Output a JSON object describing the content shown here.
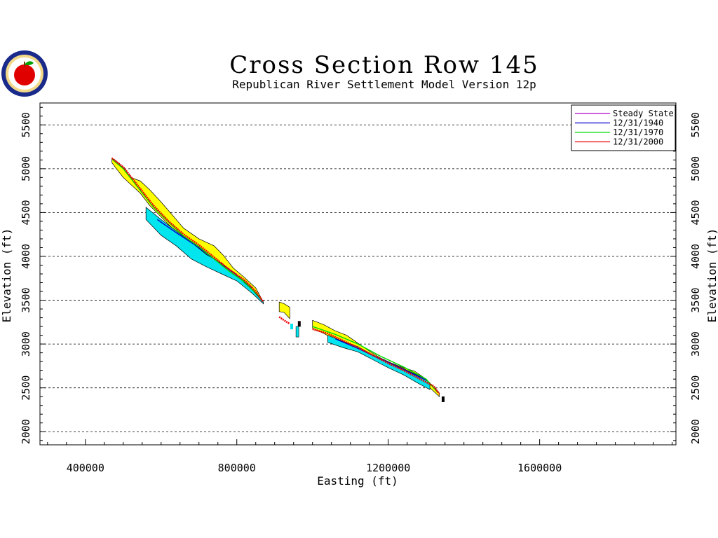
{
  "chart_data": {
    "type": "area",
    "title": "Cross Section Row 145",
    "subtitle": "Republican River Settlement Model Version 12p",
    "xlabel": "Easting (ft)",
    "ylabel": "Elevation (ft)",
    "xlim": [
      280000,
      1960000
    ],
    "ylim": [
      1850000,
      5750
    ],
    "x_ticks": [
      400000,
      800000,
      1200000,
      1600000
    ],
    "x_tick_labels": [
      "400000",
      "800000",
      "1200000",
      "1600000"
    ],
    "y_ticks": [
      2000,
      2500,
      3000,
      3500,
      4000,
      4500,
      5000,
      5500
    ],
    "y_tick_labels": [
      "2000",
      "2500",
      "3000",
      "3500",
      "4000",
      "4500",
      "5000",
      "5500"
    ],
    "grid": "horizontal-dashed",
    "legend_position": "top-right",
    "legend": [
      {
        "label": "Steady State",
        "color": "#b000d0"
      },
      {
        "label": "12/31/1940",
        "color": "#0000cc"
      },
      {
        "label": "12/31/1970",
        "color": "#00dd00"
      },
      {
        "label": "12/31/2000",
        "color": "#ee0000"
      }
    ],
    "layers": [
      {
        "name": "land-surface-band",
        "color": "#ffff00",
        "segments": [
          {
            "x": [
              470000,
              480000,
              500000,
              520000,
              545000,
              570000,
              600000,
              630000,
              660000,
              700000,
              740000,
              765000,
              790000,
              820000,
              850000,
              870000
            ],
            "top": [
              5120,
              5090,
              5010,
              4900,
              4860,
              4760,
              4620,
              4470,
              4320,
              4200,
              4120,
              4010,
              3870,
              3760,
              3640,
              3480
            ],
            "bottom": [
              5070,
              5010,
              4900,
              4820,
              4720,
              4580,
              4450,
              4320,
              4180,
              4080,
              3960,
              3890,
              3790,
              3680,
              3570,
              3460
            ]
          },
          {
            "x": [
              912000,
              925000,
              940000
            ],
            "top": [
              3480,
              3460,
              3420
            ],
            "bottom": [
              3370,
              3360,
              3290
            ]
          },
          {
            "x": [
              1000000,
              1030000,
              1060000,
              1090000,
              1120000,
              1150000,
              1180000,
              1210000,
              1240000,
              1270000,
              1300000,
              1320000,
              1335000
            ],
            "top": [
              3270,
              3220,
              3150,
              3100,
              3010,
              2920,
              2840,
              2780,
              2730,
              2690,
              2600,
              2510,
              2440
            ],
            "bottom": [
              3180,
              3120,
              3050,
              2980,
              2920,
              2860,
              2790,
              2720,
              2650,
              2610,
              2540,
              2460,
              2400
            ]
          }
        ]
      },
      {
        "name": "lower-aquifer-band",
        "color": "#00e5ee",
        "segments": [
          {
            "x": [
              560000,
              600000,
              640000,
              680000,
              720000,
              760000,
              800000,
              840000,
              870000
            ],
            "top": [
              4560,
              4420,
              4290,
              4160,
              4020,
              3920,
              3780,
              3620,
              3480
            ],
            "bottom": [
              4420,
              4240,
              4120,
              3970,
              3880,
              3800,
              3720,
              3580,
              3460
            ]
          },
          {
            "x": [
              960000
            ],
            "top": [
              3200
            ],
            "bottom": [
              3080
            ]
          },
          {
            "x": [
              1040000,
              1080000,
              1120000,
              1160000,
              1200000,
              1240000,
              1280000,
              1310000
            ],
            "top": [
              3100,
              3030,
              2970,
              2870,
              2790,
              2720,
              2640,
              2560
            ],
            "bottom": [
              3020,
              2960,
              2910,
              2820,
              2730,
              2650,
              2550,
              2480
            ]
          }
        ]
      }
    ],
    "series": [
      {
        "name": "12/31/2000",
        "color": "#ee0000",
        "segments": [
          {
            "x": [
              470000,
              500000,
              540000,
              580000,
              620000,
              660000,
              700000,
              740000,
              780000,
              820000,
              850000,
              870000
            ],
            "y": [
              5120,
              5020,
              4800,
              4580,
              4400,
              4250,
              4130,
              3990,
              3850,
              3730,
              3600,
              3480
            ]
          },
          {
            "x": [
              912000,
              925000,
              940000
            ],
            "y": [
              3310,
              3270,
              3230
            ]
          },
          {
            "x": [
              1000000,
              1040000,
              1080000,
              1120000,
              1160000,
              1200000,
              1240000,
              1280000,
              1320000,
              1335000
            ],
            "y": [
              3170,
              3120,
              3040,
              2960,
              2870,
              2780,
              2700,
              2610,
              2520,
              2430
            ]
          }
        ]
      },
      {
        "name": "12/31/1970",
        "color": "#00dd00",
        "segments": [
          {
            "x": [
              470000,
              500000,
              540000,
              580000,
              620000,
              660000,
              700000,
              740000,
              780000,
              820000,
              860000
            ],
            "y": [
              5110,
              5000,
              4780,
              4560,
              4390,
              4230,
              4110,
              3970,
              3830,
              3710,
              3540
            ]
          },
          {
            "x": [
              1000000,
              1060000,
              1120000,
              1180000,
              1240000,
              1300000,
              1330000
            ],
            "y": [
              3200,
              3110,
              3000,
              2860,
              2740,
              2600,
              2450
            ]
          }
        ]
      },
      {
        "name": "12/31/1940",
        "color": "#0000cc",
        "segments": [
          {
            "x": [
              590000,
              640000,
              690000,
              740000,
              790000,
              840000
            ],
            "y": [
              4420,
              4270,
              4130,
              3970,
              3820,
              3640
            ]
          },
          {
            "x": [
              1060000,
              1120000,
              1180000,
              1240000,
              1300000
            ],
            "y": [
              3060,
              2950,
              2830,
              2710,
              2590
            ]
          }
        ]
      }
    ],
    "markers": [
      {
        "x": 965000,
        "y": 3230,
        "color": "#000000"
      },
      {
        "x": 1345000,
        "y": 2370,
        "color": "#000000"
      },
      {
        "x": 945000,
        "y": 3200,
        "color": "#00e5ee"
      }
    ]
  }
}
